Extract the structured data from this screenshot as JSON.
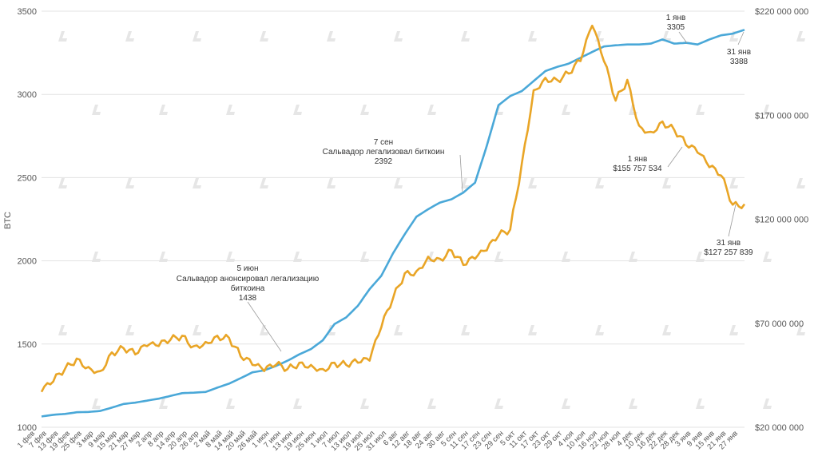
{
  "chart_data": {
    "type": "line",
    "ylabel": "BTC",
    "left_axis": {
      "range": [
        1000,
        3500
      ],
      "ticks": [
        "1000",
        "1500",
        "2000",
        "2500",
        "3000",
        "3500"
      ]
    },
    "right_axis": {
      "range": [
        20000000,
        220000000
      ],
      "ticks": [
        "$20 000 000",
        "$70 000 000",
        "$120 000 000",
        "$170 000 000",
        "$220 000 000"
      ]
    },
    "gridlines": true,
    "categories": [
      "1 фев",
      "7 фев",
      "13 фев",
      "19 фев",
      "25 фев",
      "3 мар",
      "9 мар",
      "15 мар",
      "21 мар",
      "27 мар",
      "2 апр",
      "8 апр",
      "14 апр",
      "20 апр",
      "26 апр",
      "2 май",
      "8 май",
      "14 май",
      "20 май",
      "26 май",
      "1 июн",
      "7 июн",
      "13 июн",
      "19 июн",
      "25 июн",
      "1 июл",
      "7 июл",
      "13 июл",
      "19 июл",
      "25 июл",
      "31 июл",
      "6 авг",
      "12 авг",
      "18 авг",
      "24 авг",
      "30 авг",
      "5 сен",
      "11 сен",
      "17 сен",
      "23 сен",
      "29 сен",
      "5 окт",
      "11 окт",
      "17 окт",
      "23 окт",
      "29 окт",
      "4 ноя",
      "10 ноя",
      "16 ноя",
      "22 ноя",
      "28 ноя",
      "4 дек",
      "10 дек",
      "16 дек",
      "22 дек",
      "28 дек",
      "3 янв",
      "9 янв",
      "15 янв",
      "21 янв",
      "27 янв"
    ],
    "series": [
      {
        "name": "BTC",
        "axis": "left",
        "color": "#4aa8d8",
        "values": [
          1065,
          1075,
          1080,
          1090,
          1092,
          1098,
          1118,
          1140,
          1148,
          1160,
          1172,
          1188,
          1205,
          1208,
          1212,
          1238,
          1262,
          1295,
          1330,
          1342,
          1368,
          1400,
          1438,
          1470,
          1522,
          1620,
          1660,
          1730,
          1830,
          1910,
          2045,
          2160,
          2265,
          2310,
          2350,
          2370,
          2410,
          2470,
          2690,
          2935,
          2990,
          3020,
          3080,
          3140,
          3165,
          3185,
          3220,
          3255,
          3288,
          3295,
          3300,
          3300,
          3305,
          3330,
          3305,
          3310,
          3300,
          3330,
          3355,
          3365,
          3388
        ]
      },
      {
        "name": "USD",
        "axis": "right",
        "color": "#e9a526",
        "values": [
          37000000,
          42000000,
          48000000,
          53000000,
          49000000,
          47000000,
          56000000,
          58000000,
          55000000,
          59000000,
          59000000,
          62000000,
          64000000,
          59000000,
          61000000,
          64000000,
          63000000,
          54000000,
          50000000,
          47000000,
          50000000,
          48000000,
          51000000,
          50000000,
          48000000,
          51000000,
          50000000,
          51000000,
          52000000,
          68000000,
          82000000,
          94000000,
          95000000,
          102000000,
          101000000,
          105000000,
          98000000,
          101000000,
          105000000,
          112000000,
          115000000,
          147000000,
          182000000,
          188000000,
          187000000,
          190000000,
          196000000,
          213000000,
          196000000,
          177000000,
          187000000,
          165000000,
          162000000,
          167000000,
          163000000,
          155757534,
          152000000,
          145000000,
          141000000,
          127000000,
          127257839
        ]
      }
    ],
    "annotations": [
      {
        "title": "5 июн",
        "text": "Сальвадор анонсировал легализацию",
        "text2": "биткоина",
        "value": "1438"
      },
      {
        "title": "7 сен",
        "text": "Сальвадор легализовал биткоин",
        "value": "2392"
      },
      {
        "title": "1 янв",
        "value": "3305"
      },
      {
        "title": "31 янв",
        "value": "3388"
      },
      {
        "title": "1 янв",
        "value": "$155 757 534"
      },
      {
        "title": "31 янв",
        "value": "$127 257 839"
      }
    ]
  }
}
